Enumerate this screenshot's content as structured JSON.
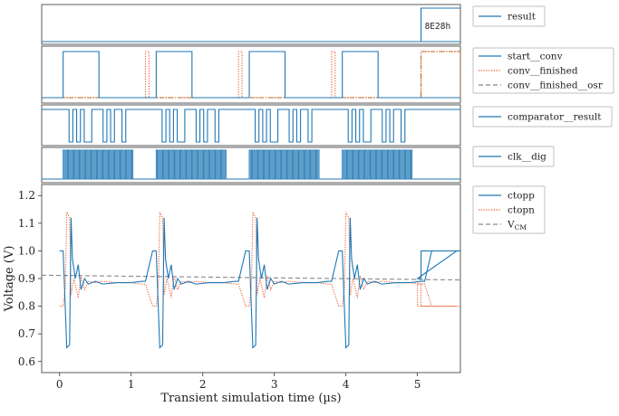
{
  "colors": {
    "primary": "#1f77b4",
    "secondary": "#e8572a",
    "reference": "#888888",
    "brown": "#b5651d",
    "frame": "#333333"
  },
  "chart_data": {
    "type": "line",
    "xlabel": "Transient simulation time (µs)",
    "ylabel": "Voltage (V)",
    "xlim": [
      -0.25,
      5.6
    ],
    "ylim": [
      0.56,
      1.24
    ],
    "x_ticks": [
      "0",
      "1",
      "2",
      "3",
      "4",
      "5"
    ],
    "y_ticks": [
      "0.6",
      "0.7",
      "0.8",
      "0.9",
      "1.0",
      "1.1",
      "1.2"
    ],
    "conversions_start_us": [
      0.0,
      1.3,
      2.6,
      3.9
    ],
    "conversion_length_us": 1.03,
    "panels": [
      {
        "legend": [
          "result"
        ],
        "bus_value": "8E28h",
        "bus_change_us": 5.05
      },
      {
        "legend": [
          "start__conv",
          "conv__finished",
          "conv__finished__osr"
        ],
        "start_conv_high_us": [
          [
            0.05,
            0.55
          ],
          [
            1.35,
            1.85
          ],
          [
            2.65,
            3.15
          ],
          [
            3.95,
            4.45
          ]
        ],
        "conv_finished_high_us": [
          [
            1.2,
            1.25
          ],
          [
            2.5,
            2.55
          ],
          [
            3.8,
            3.85
          ],
          [
            5.05,
            5.6
          ]
        ],
        "conv_finished_osr_rise_us": 5.05
      },
      {
        "legend": [
          "comparator__result"
        ],
        "bits_per_conversion": [
          1,
          0,
          1,
          0,
          1,
          0,
          0,
          1,
          1,
          1,
          0,
          1,
          0,
          1,
          1,
          0
        ]
      },
      {
        "legend": [
          "clk__dig"
        ],
        "clock_bursts_us": [
          [
            0.05,
            1.03
          ],
          [
            1.35,
            2.33
          ],
          [
            2.65,
            3.63
          ],
          [
            3.95,
            4.93
          ]
        ],
        "clock_period_us": 0.03
      },
      {
        "legend": [
          "ctopp",
          "ctopn",
          "V_CM"
        ],
        "series": [
          {
            "name": "ctopp",
            "x": [
              0.0,
              0.05,
              0.1,
              0.14,
              0.16,
              0.18,
              0.22,
              0.26,
              0.3,
              0.35,
              0.4,
              0.5,
              0.6,
              0.8,
              1.0,
              1.15,
              1.2,
              1.3,
              1.35
            ],
            "y": [
              1.0,
              1.0,
              0.65,
              0.66,
              1.12,
              0.97,
              0.9,
              0.95,
              0.86,
              0.9,
              0.88,
              0.89,
              0.88,
              0.885,
              0.885,
              0.89,
              0.89,
              1.0,
              1.0
            ]
          },
          {
            "name": "ctopn",
            "x": [
              0.0,
              0.05,
              0.08,
              0.1,
              0.14,
              0.16,
              0.2,
              0.26,
              0.3,
              0.35,
              0.4,
              0.5,
              0.6,
              0.8,
              1.0,
              1.15,
              1.2,
              1.3,
              1.35
            ],
            "y": [
              0.8,
              0.8,
              0.87,
              1.14,
              1.12,
              0.84,
              0.9,
              0.83,
              0.91,
              0.86,
              0.89,
              0.885,
              0.89,
              0.885,
              0.885,
              0.88,
              0.88,
              0.8,
              0.8
            ]
          },
          {
            "name": "V_CM",
            "x": [
              -0.25,
              5.6
            ],
            "y": [
              0.912,
              0.895
            ]
          }
        ]
      }
    ]
  }
}
